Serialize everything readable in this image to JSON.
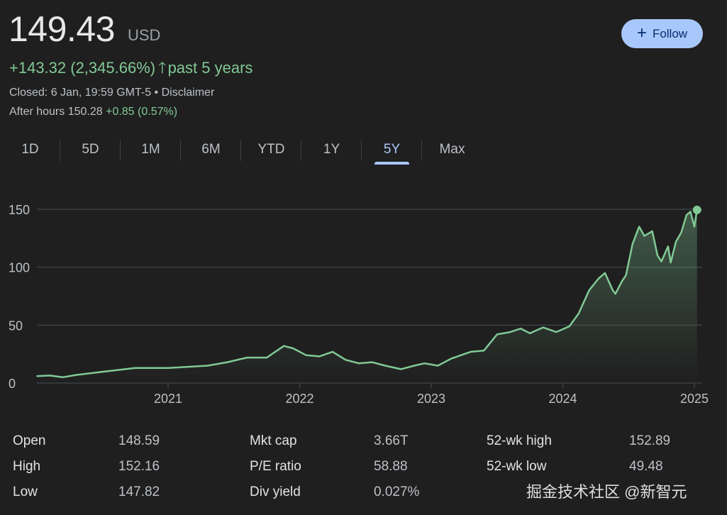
{
  "quote": {
    "price": "149.43",
    "currency": "USD",
    "change": "+143.32 (2,345.66%)",
    "period": "past 5 years",
    "closed": "Closed: 6 Jan, 19:59 GMT-5 • Disclaimer",
    "after_label": "After hours 150.28",
    "after_change": "+0.85 (0.57%)"
  },
  "follow": {
    "label": "Follow",
    "icon": "plus-icon"
  },
  "tabs": [
    {
      "label": "1D"
    },
    {
      "label": "5D"
    },
    {
      "label": "1M"
    },
    {
      "label": "6M"
    },
    {
      "label": "YTD"
    },
    {
      "label": "1Y"
    },
    {
      "label": "5Y",
      "active": true
    },
    {
      "label": "Max"
    }
  ],
  "colors": {
    "line": "#81c995",
    "accent": "#a8c7fa",
    "grid": "#3c4043"
  },
  "chart_data": {
    "type": "line",
    "title": "",
    "xlabel": "",
    "ylabel": "",
    "ylim": [
      0,
      150
    ],
    "yticks": [
      "0",
      "50",
      "100",
      "150"
    ],
    "xticks": [
      "2021",
      "2022",
      "2023",
      "2024",
      "2025"
    ],
    "xlim": [
      2020.0,
      2025.02
    ],
    "x": [
      2020.0,
      2020.1,
      2020.2,
      2020.3,
      2020.45,
      2020.6,
      2020.75,
      2020.9,
      2021.0,
      2021.15,
      2021.3,
      2021.45,
      2021.6,
      2021.75,
      2021.88,
      2021.95,
      2022.05,
      2022.15,
      2022.25,
      2022.35,
      2022.45,
      2022.55,
      2022.65,
      2022.77,
      2022.87,
      2022.95,
      2023.05,
      2023.15,
      2023.3,
      2023.4,
      2023.5,
      2023.6,
      2023.68,
      2023.75,
      2023.85,
      2023.95,
      2024.05,
      2024.12,
      2024.2,
      2024.27,
      2024.32,
      2024.38,
      2024.4,
      2024.45,
      2024.48,
      2024.53,
      2024.58,
      2024.62,
      2024.68,
      2024.72,
      2024.75,
      2024.8,
      2024.82,
      2024.86,
      2024.9,
      2024.94,
      2024.97,
      2025.0,
      2025.02
    ],
    "values": [
      6,
      6.5,
      5,
      7,
      9,
      11,
      13,
      13,
      13,
      14,
      15,
      18,
      22,
      22,
      32,
      30,
      24,
      23,
      27,
      20,
      17,
      18,
      15,
      12,
      15,
      17,
      15,
      21,
      27,
      28,
      42,
      44,
      47,
      43,
      48,
      44,
      49,
      60,
      80,
      90,
      95,
      80,
      77,
      88,
      93,
      120,
      135,
      127,
      131,
      110,
      105,
      118,
      104,
      122,
      130,
      145,
      148,
      135,
      149.43
    ]
  },
  "stats": [
    {
      "label": "Open",
      "value": "148.59"
    },
    {
      "label": "High",
      "value": "152.16"
    },
    {
      "label": "Low",
      "value": "147.82"
    },
    {
      "label": "Mkt cap",
      "value": "3.66T"
    },
    {
      "label": "P/E ratio",
      "value": "58.88"
    },
    {
      "label": "Div yield",
      "value": "0.027%"
    },
    {
      "label": "52-wk high",
      "value": "152.89"
    },
    {
      "label": "52-wk low",
      "value": "49.48"
    }
  ],
  "watermark": "掘金技术社区 @新智元"
}
